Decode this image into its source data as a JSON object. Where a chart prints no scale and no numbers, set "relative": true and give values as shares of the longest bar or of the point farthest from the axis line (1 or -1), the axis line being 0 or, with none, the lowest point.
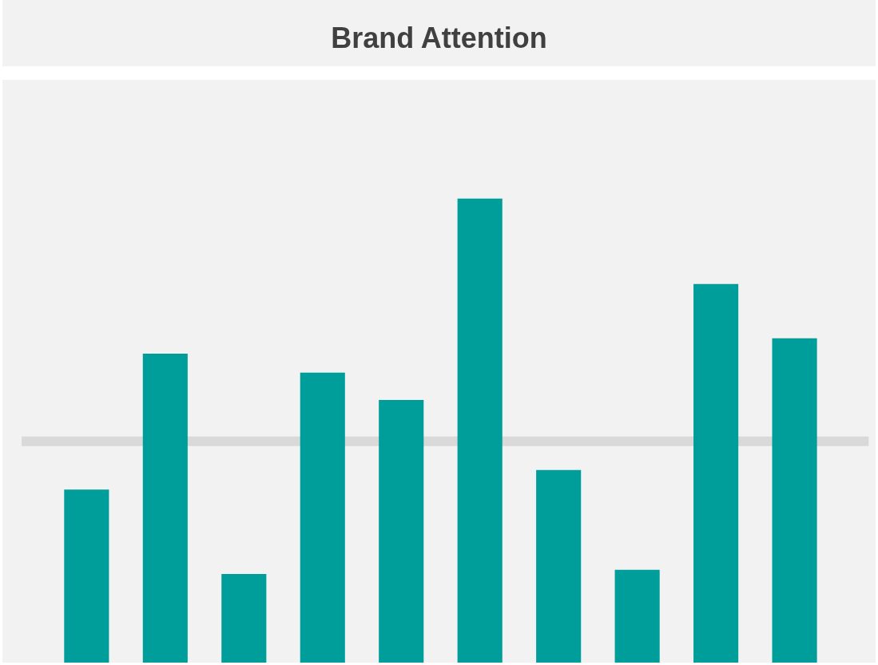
{
  "chart_data": {
    "type": "bar",
    "title": "Brand Attention",
    "relative": true,
    "color": "#009e9b",
    "categories": [
      null,
      null,
      null,
      null,
      null,
      null,
      null,
      null,
      null,
      null
    ],
    "values": [
      0.373,
      0.666,
      0.191,
      0.625,
      0.566,
      1,
      0.415,
      0.2,
      0.816,
      0.699
    ],
    "ref_lines": [
      {
        "axis": "y",
        "value": 0.477,
        "color": "#d9d9d9"
      }
    ]
  }
}
